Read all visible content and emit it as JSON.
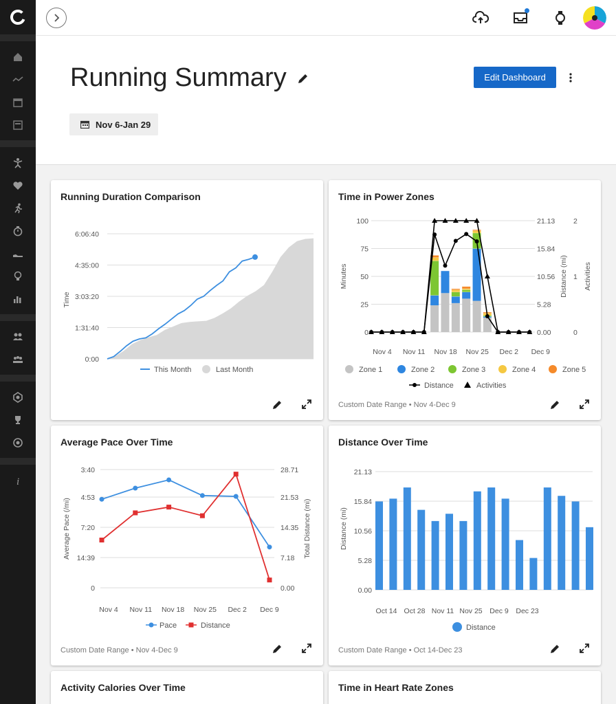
{
  "header": {
    "title": "Running Summary",
    "edit_dashboard_label": "Edit Dashboard",
    "date_range": "Nov 6-Jan 29"
  },
  "sidebar": {
    "icons": [
      "home-icon",
      "activity-trend-icon",
      "calendar-icon",
      "reports-icon",
      "fitness-person-icon",
      "heart-icon",
      "running-icon",
      "stopwatch-icon",
      "shoe-icon",
      "lightbulb-icon",
      "bar-chart-icon",
      "connections-icon",
      "groups-icon",
      "badge-icon",
      "trophy-icon",
      "target-icon",
      "info-icon"
    ]
  },
  "topbar": {
    "icons": [
      "upload-cloud-icon",
      "inbox-icon",
      "watch-icon"
    ]
  },
  "cards": {
    "duration": {
      "title": "Running Duration Comparison",
      "y_label": "Time",
      "legend": [
        "This Month",
        "Last Month"
      ]
    },
    "power": {
      "title": "Time in Power Zones",
      "footer": "Custom Date Range  •  Nov 4-Dec 9",
      "y_label": "Minutes",
      "y2_label": "Distance (mi)",
      "y3_label": "Activities",
      "legend_zones": [
        "Zone 1",
        "Zone 2",
        "Zone 3",
        "Zone 4",
        "Zone 5"
      ],
      "legend_lines": [
        "Distance",
        "Activities"
      ]
    },
    "pace": {
      "title": "Average Pace Over Time",
      "footer": "Custom Date Range  •  Nov 4-Dec 9",
      "y_label": "Average Pace (/mi)",
      "y2_label": "Total Distance (mi)",
      "legend": [
        "Pace",
        "Distance"
      ]
    },
    "distance": {
      "title": "Distance Over Time",
      "footer": "Custom Date Range  •  Oct 14-Dec 23",
      "y_label": "Distance (mi)",
      "legend": [
        "Distance"
      ]
    },
    "calories": {
      "title": "Activity Calories Over Time"
    },
    "heartrate": {
      "title": "Time in Heart Rate Zones"
    }
  },
  "colors": {
    "accent": "#1668c8",
    "blue_series": "#3d8fe0",
    "red_series": "#e03030",
    "zone1": "#c4c4c4",
    "zone2": "#2e86e0",
    "zone3": "#7dc632",
    "zone4": "#f5c842",
    "zone5": "#f58a2a"
  },
  "chart_data": [
    {
      "id": "duration",
      "type": "line",
      "title": "Running Duration Comparison",
      "ylabel": "Time",
      "y_ticks": [
        "0:00",
        "1:31:40",
        "3:03:20",
        "4:35:00",
        "6:06:40"
      ],
      "y_tick_values": [
        0,
        5500,
        11000,
        16500,
        22000
      ],
      "series": [
        {
          "name": "This Month",
          "values": [
            0,
            400,
            1300,
            2300,
            3100,
            3500,
            3700,
            4400,
            5300,
            6100,
            7000,
            7900,
            8500,
            9400,
            10500,
            11000,
            12000,
            12900,
            13700,
            15300,
            16000,
            17200,
            17500,
            17900
          ]
        },
        {
          "name": "Last Month",
          "values": [
            0,
            500,
            1400,
            2600,
            3300,
            3800,
            4200,
            5100,
            5700,
            6300,
            6500,
            6600,
            6700,
            7200,
            8000,
            8900,
            10100,
            11100,
            11900,
            13000,
            15300,
            17900,
            19600,
            20700,
            21100,
            21200
          ]
        }
      ]
    },
    {
      "id": "power",
      "type": "bar",
      "title": "Time in Power Zones",
      "categories_labels": [
        "Nov 4",
        "Nov 11",
        "Nov 18",
        "Nov 25",
        "Dec 2",
        "Dec 9"
      ],
      "y_ticks": [
        0,
        25,
        50,
        75,
        100
      ],
      "y2_ticks": [
        "0.00",
        "5.28",
        "10.56",
        "15.84",
        "21.13"
      ],
      "y3_ticks": [
        0,
        1,
        2
      ],
      "zones_stack": [
        [
          0,
          0,
          0,
          0,
          0
        ],
        [
          0,
          0,
          0,
          0,
          0
        ],
        [
          0,
          0,
          0,
          0,
          0
        ],
        [
          0,
          0,
          0,
          0,
          0
        ],
        [
          0,
          0,
          0,
          0,
          0
        ],
        [
          0,
          0,
          0,
          0,
          0
        ],
        [
          24,
          9,
          31,
          3,
          2
        ],
        [
          35,
          20,
          0,
          0,
          0
        ],
        [
          26,
          6,
          4,
          2,
          1
        ],
        [
          30,
          6,
          2,
          1,
          2
        ],
        [
          28,
          47,
          14,
          2,
          1
        ],
        [
          13,
          1,
          1,
          2,
          1
        ],
        [
          0,
          0,
          0,
          0,
          0
        ],
        [
          0,
          0,
          0,
          0,
          0
        ],
        [
          0,
          0,
          0,
          0,
          0
        ],
        [
          0,
          0,
          0,
          0,
          0
        ]
      ],
      "distance": [
        0,
        0,
        0,
        0,
        0,
        0,
        18.5,
        12.6,
        17.3,
        18.6,
        17.2,
        3.0,
        0,
        0,
        0,
        0
      ],
      "activities": [
        0,
        0,
        0,
        0,
        0,
        0,
        2,
        2,
        2,
        2,
        2,
        1,
        0,
        0,
        0,
        0
      ]
    },
    {
      "id": "pace",
      "type": "line",
      "title": "Average Pace Over Time",
      "categories": [
        "Nov 4",
        "Nov 11",
        "Nov 18",
        "Nov 25",
        "Dec 2",
        "Dec 9"
      ],
      "y_ticks": [
        "3:40",
        "4:53",
        "7:20",
        "14:39",
        "0"
      ],
      "y2_ticks": [
        "28.71",
        "21.53",
        "14.35",
        "7.18",
        "0.00"
      ],
      "series": [
        {
          "name": "Pace",
          "values": [
            21.5,
            24.2,
            26.2,
            22.4,
            22.2,
            9.9
          ]
        },
        {
          "name": "Distance",
          "values": [
            11.6,
            18.2,
            19.6,
            17.5,
            27.6,
            1.9
          ]
        }
      ]
    },
    {
      "id": "distance",
      "type": "bar",
      "title": "Distance Over Time",
      "ylabel": "Distance (mi)",
      "y_ticks": [
        "0.00",
        "5.28",
        "10.56",
        "15.84",
        "21.13"
      ],
      "x_labels": [
        "Oct 14",
        "Oct 28",
        "Nov 11",
        "Nov 25",
        "Dec 9",
        "Dec 23"
      ],
      "values": [
        15.8,
        16.3,
        18.3,
        14.3,
        12.3,
        13.6,
        12.3,
        17.6,
        18.3,
        16.3,
        8.9,
        5.7,
        18.3,
        16.8,
        15.8,
        11.2
      ],
      "ylim": [
        0,
        21.13
      ],
      "legend": [
        "Distance"
      ]
    }
  ]
}
